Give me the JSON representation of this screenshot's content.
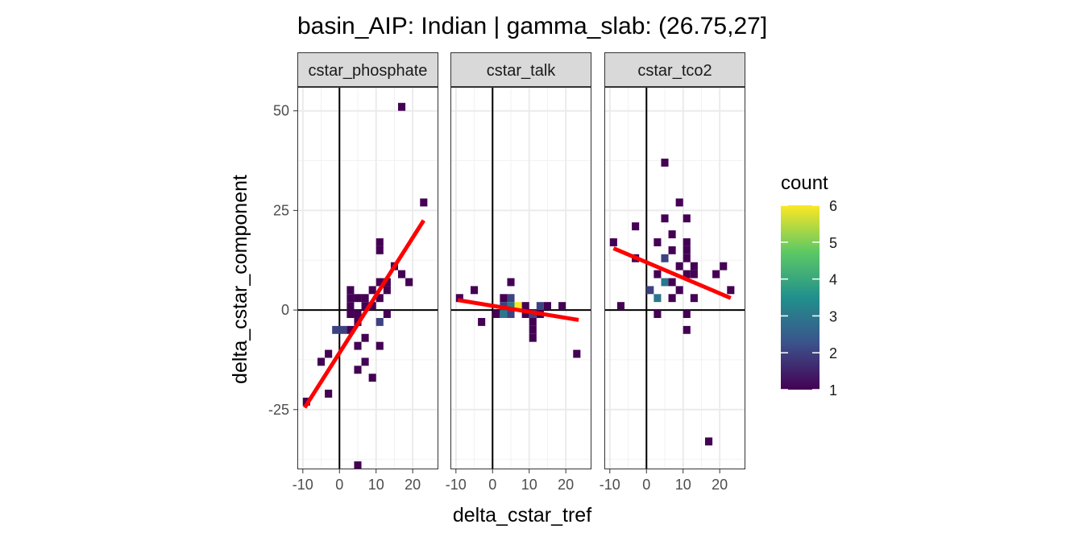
{
  "chart_data": {
    "type": "heatmap",
    "title": "basin_AIP: Indian | gamma_slab:  (26.75,27]",
    "xlabel": "delta_cstar_tref",
    "ylabel": "delta_cstar_component",
    "xlim": [
      -11.5,
      27
    ],
    "ylim": [
      -40,
      56
    ],
    "x_ticks": [
      -10,
      0,
      10,
      20
    ],
    "y_ticks": [
      -25,
      0,
      25,
      50
    ],
    "grid": true,
    "legend": {
      "title": "count",
      "position": "right",
      "min": 1,
      "max": 6,
      "ticks": [
        1,
        2,
        3,
        4,
        5,
        6
      ],
      "colors": [
        "#440154",
        "#3b528b",
        "#21908d",
        "#5dc963",
        "#fde725"
      ]
    },
    "trend_line_color": "#ff0000",
    "bin_width": 2,
    "panels": [
      {
        "name": "cstar_phosphate",
        "trend": {
          "x": [
            -9.5,
            23
          ],
          "y": [
            -24.5,
            22.5
          ]
        },
        "bins": [
          {
            "x": 17,
            "y": 51,
            "count": 1
          },
          {
            "x": 23,
            "y": 27,
            "count": 1
          },
          {
            "x": 11,
            "y": 17,
            "count": 1
          },
          {
            "x": 11,
            "y": 15,
            "count": 1
          },
          {
            "x": 15,
            "y": 11,
            "count": 1
          },
          {
            "x": 17,
            "y": 9,
            "count": 1
          },
          {
            "x": 19,
            "y": 7,
            "count": 1
          },
          {
            "x": 11,
            "y": 7,
            "count": 1
          },
          {
            "x": 13,
            "y": 7,
            "count": 1
          },
          {
            "x": 9,
            "y": 5,
            "count": 1
          },
          {
            "x": 3,
            "y": 5,
            "count": 1
          },
          {
            "x": 13,
            "y": 5,
            "count": 1
          },
          {
            "x": 3,
            "y": 3,
            "count": 1
          },
          {
            "x": 5,
            "y": 3,
            "count": 1
          },
          {
            "x": 7,
            "y": 3,
            "count": 1
          },
          {
            "x": 11,
            "y": 3,
            "count": 1
          },
          {
            "x": 3,
            "y": 1,
            "count": 1
          },
          {
            "x": 7,
            "y": 1,
            "count": 1
          },
          {
            "x": 9,
            "y": 1,
            "count": 1
          },
          {
            "x": 3,
            "y": -1,
            "count": 1
          },
          {
            "x": 5,
            "y": -1,
            "count": 1
          },
          {
            "x": 13,
            "y": -1,
            "count": 1
          },
          {
            "x": 5,
            "y": -3,
            "count": 1
          },
          {
            "x": 11,
            "y": -3,
            "count": 2
          },
          {
            "x": -1,
            "y": -5,
            "count": 2
          },
          {
            "x": 1,
            "y": -5,
            "count": 2
          },
          {
            "x": 3,
            "y": -5,
            "count": 1
          },
          {
            "x": 7,
            "y": -7,
            "count": 1
          },
          {
            "x": 11,
            "y": -9,
            "count": 1
          },
          {
            "x": -3,
            "y": -11,
            "count": 1
          },
          {
            "x": 5,
            "y": -9,
            "count": 1
          },
          {
            "x": -5,
            "y": -13,
            "count": 1
          },
          {
            "x": 7,
            "y": -13,
            "count": 1
          },
          {
            "x": 5,
            "y": -15,
            "count": 1
          },
          {
            "x": 9,
            "y": -17,
            "count": 1
          },
          {
            "x": -3,
            "y": -21,
            "count": 1
          },
          {
            "x": -9,
            "y": -23,
            "count": 1
          },
          {
            "x": 5,
            "y": -39,
            "count": 1
          }
        ]
      },
      {
        "name": "cstar_talk",
        "trend": {
          "x": [
            -9.5,
            23.5
          ],
          "y": [
            2.5,
            -2.5
          ]
        },
        "bins": [
          {
            "x": 5,
            "y": 7,
            "count": 1
          },
          {
            "x": -5,
            "y": 5,
            "count": 1
          },
          {
            "x": -9,
            "y": 3,
            "count": 1
          },
          {
            "x": 3,
            "y": 3,
            "count": 1
          },
          {
            "x": 5,
            "y": 3,
            "count": 2
          },
          {
            "x": 3,
            "y": 1,
            "count": 2
          },
          {
            "x": 5,
            "y": 1,
            "count": 3
          },
          {
            "x": 7,
            "y": 1,
            "count": 6
          },
          {
            "x": 9,
            "y": 1,
            "count": 1
          },
          {
            "x": 13,
            "y": 1,
            "count": 2
          },
          {
            "x": 15,
            "y": 1,
            "count": 1
          },
          {
            "x": 19,
            "y": 1,
            "count": 1
          },
          {
            "x": 1,
            "y": -1,
            "count": 1
          },
          {
            "x": 3,
            "y": -1,
            "count": 3
          },
          {
            "x": 5,
            "y": -1,
            "count": 2
          },
          {
            "x": 9,
            "y": -1,
            "count": 1
          },
          {
            "x": 11,
            "y": -1,
            "count": 2
          },
          {
            "x": 13,
            "y": -1,
            "count": 1
          },
          {
            "x": -3,
            "y": -3,
            "count": 1
          },
          {
            "x": 11,
            "y": -3,
            "count": 1
          },
          {
            "x": 11,
            "y": -5,
            "count": 1
          },
          {
            "x": 11,
            "y": -7,
            "count": 1
          },
          {
            "x": 23,
            "y": -11,
            "count": 1
          }
        ]
      },
      {
        "name": "cstar_tco2",
        "trend": {
          "x": [
            -9,
            23
          ],
          "y": [
            15.5,
            3
          ]
        },
        "bins": [
          {
            "x": 5,
            "y": 37,
            "count": 1
          },
          {
            "x": 9,
            "y": 27,
            "count": 1
          },
          {
            "x": 5,
            "y": 23,
            "count": 1
          },
          {
            "x": 11,
            "y": 23,
            "count": 1
          },
          {
            "x": -3,
            "y": 21,
            "count": 1
          },
          {
            "x": 7,
            "y": 19,
            "count": 1
          },
          {
            "x": -9,
            "y": 17,
            "count": 1
          },
          {
            "x": 3,
            "y": 17,
            "count": 1
          },
          {
            "x": 11,
            "y": 17,
            "count": 1
          },
          {
            "x": 7,
            "y": 15,
            "count": 1
          },
          {
            "x": 11,
            "y": 15,
            "count": 1
          },
          {
            "x": -3,
            "y": 13,
            "count": 1
          },
          {
            "x": 5,
            "y": 13,
            "count": 2
          },
          {
            "x": 11,
            "y": 13,
            "count": 1
          },
          {
            "x": 9,
            "y": 11,
            "count": 1
          },
          {
            "x": 13,
            "y": 11,
            "count": 1
          },
          {
            "x": 21,
            "y": 11,
            "count": 1
          },
          {
            "x": 3,
            "y": 9,
            "count": 1
          },
          {
            "x": 11,
            "y": 9,
            "count": 1
          },
          {
            "x": 13,
            "y": 9,
            "count": 1
          },
          {
            "x": 19,
            "y": 9,
            "count": 1
          },
          {
            "x": 5,
            "y": 7,
            "count": 3
          },
          {
            "x": 7,
            "y": 7,
            "count": 1
          },
          {
            "x": 1,
            "y": 5,
            "count": 2
          },
          {
            "x": 9,
            "y": 5,
            "count": 1
          },
          {
            "x": 23,
            "y": 5,
            "count": 1
          },
          {
            "x": 3,
            "y": 3,
            "count": 3
          },
          {
            "x": 7,
            "y": 3,
            "count": 1
          },
          {
            "x": 13,
            "y": 3,
            "count": 1
          },
          {
            "x": -7,
            "y": 1,
            "count": 1
          },
          {
            "x": 3,
            "y": -1,
            "count": 1
          },
          {
            "x": 11,
            "y": -1,
            "count": 1
          },
          {
            "x": 11,
            "y": -5,
            "count": 1
          },
          {
            "x": 17,
            "y": -33,
            "count": 1
          }
        ]
      }
    ]
  }
}
